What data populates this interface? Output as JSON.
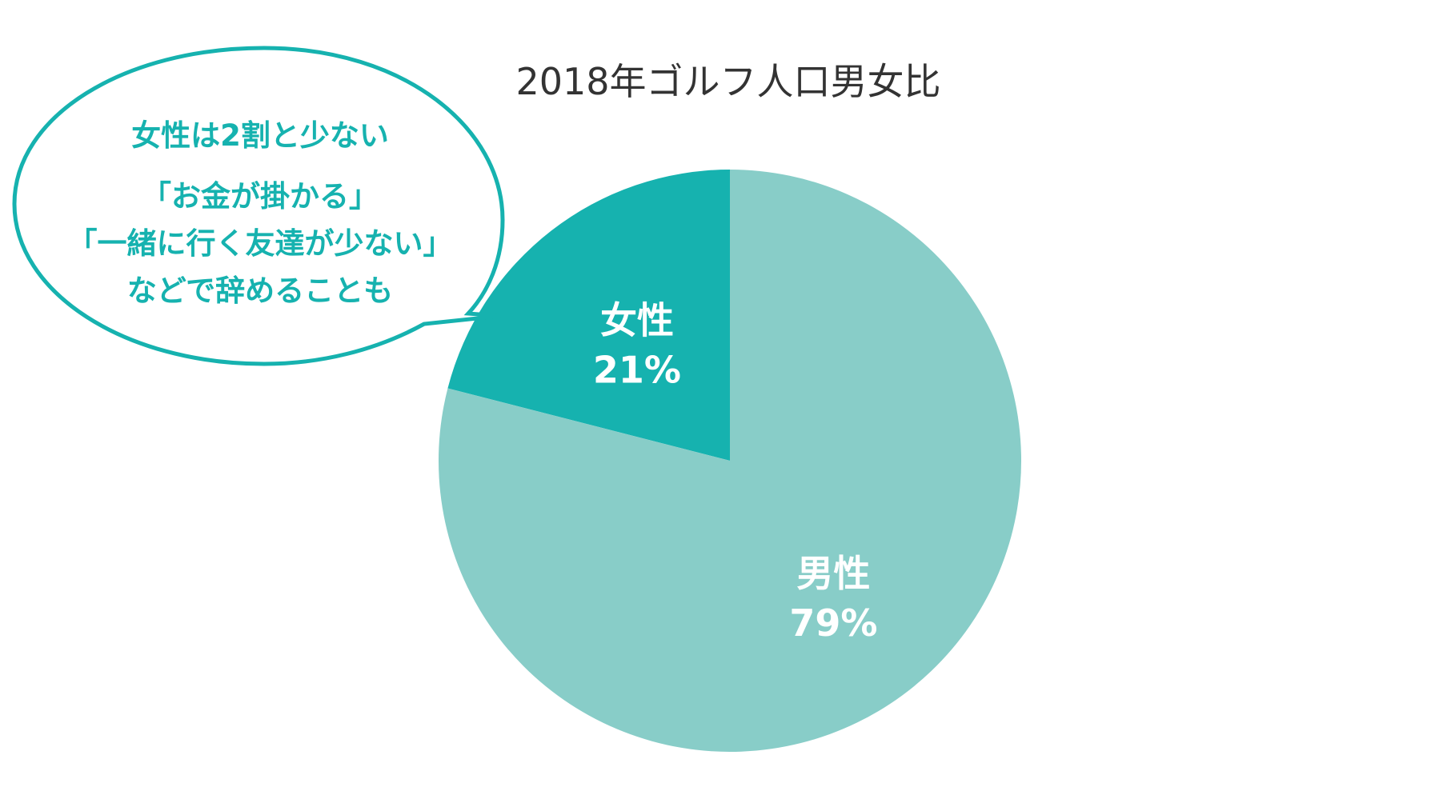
{
  "chart_data": {
    "type": "pie",
    "title": "2018年ゴルフ人口男女比",
    "start": "12 o'clock",
    "direction": "counterclockwise",
    "slices": [
      {
        "label": "女性",
        "value": 21,
        "value_label": "21%",
        "color": "#16b2af"
      },
      {
        "label": "男性",
        "value": 79,
        "value_label": "79%",
        "color": "#88cdc8"
      }
    ]
  },
  "callout": {
    "border_color": "#16b2af",
    "text_color": "#16b2af",
    "lines": [
      "女性は2割と少ない",
      "「お金が掛かる」",
      "「一緒に行く友達が少ない」",
      "などで辞めることも"
    ]
  }
}
